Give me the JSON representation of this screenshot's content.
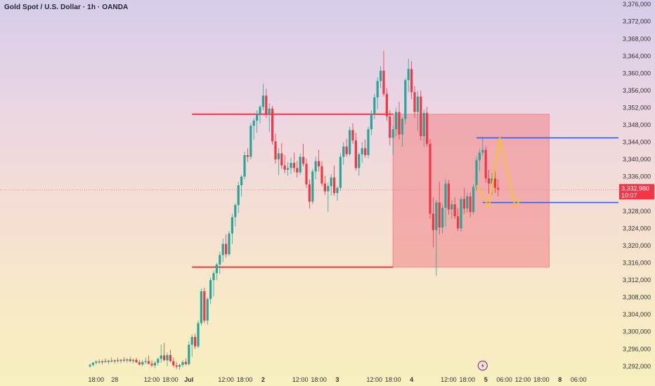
{
  "header": {
    "title": "Gold Spot / U.S. Dollar · 1h · OANDA"
  },
  "price_tag": {
    "price": "3,332,980",
    "countdown": "10:07"
  },
  "colors": {
    "up": "#26a69a",
    "down": "#f23645",
    "zone_line": "#f23645",
    "zone_fill": "#f28b8f",
    "target_line": "#2962ff",
    "projection": "#f7c325",
    "event_icon": "#9c27b0"
  },
  "icons": {
    "event": "lightning-icon"
  },
  "chart_data": {
    "type": "candlestick",
    "title": "Gold Spot / U.S. Dollar · 1h · OANDA",
    "y_ticks": [
      "3,292,000",
      "3,296,000",
      "3,300,000",
      "3,304,000",
      "3,308,000",
      "3,312,000",
      "3,316,000",
      "3,320,000",
      "3,324,000",
      "3,328,000",
      "3,332,000",
      "3,336,000",
      "3,340,000",
      "3,344,000",
      "3,348,000",
      "3,352,000",
      "3,356,000",
      "3,360,000",
      "3,364,000",
      "3,368,000",
      "3,372,000",
      "3,376,000"
    ],
    "y_tick_values": [
      3292,
      3296,
      3300,
      3304,
      3308,
      3312,
      3316,
      3320,
      3324,
      3328,
      3332,
      3336,
      3340,
      3344,
      3348,
      3352,
      3356,
      3360,
      3364,
      3368,
      3372,
      3376
    ],
    "ylim": [
      3291,
      3377
    ],
    "x_ticks": [
      {
        "i": 2,
        "label": "18:00"
      },
      {
        "i": 8,
        "label": "28"
      },
      {
        "i": 20,
        "label": "12:00"
      },
      {
        "i": 26,
        "label": "18:00"
      },
      {
        "i": 32,
        "label": "Jul"
      },
      {
        "i": 44,
        "label": "12:00"
      },
      {
        "i": 50,
        "label": "18:00"
      },
      {
        "i": 56,
        "label": "2"
      },
      {
        "i": 68,
        "label": "12:00"
      },
      {
        "i": 74,
        "label": "18:00"
      },
      {
        "i": 80,
        "label": "3"
      },
      {
        "i": 92,
        "label": "12:00"
      },
      {
        "i": 98,
        "label": "18:00"
      },
      {
        "i": 104,
        "label": "4"
      },
      {
        "i": 116,
        "label": "12:00"
      },
      {
        "i": 122,
        "label": "18:00"
      },
      {
        "i": 128,
        "label": "5"
      },
      {
        "i": 134,
        "label": "06:00"
      },
      {
        "i": 140,
        "label": "12:00"
      },
      {
        "i": 146,
        "label": "18:00"
      },
      {
        "i": 152,
        "label": "8"
      },
      {
        "i": 158,
        "label": "06:00"
      }
    ],
    "current_price": 3332.98,
    "zones": {
      "range_high": 3350.5,
      "range_low": 3315,
      "box_high": 3350.5,
      "box_low": 3315,
      "target_upper": 3345,
      "target_lower": 3330
    },
    "projection": [
      {
        "i": 125,
        "y": 3334
      },
      {
        "i": 129,
        "y": 3329
      },
      {
        "i": 132.5,
        "y": 3345
      },
      {
        "i": 137.5,
        "y": 3329
      },
      {
        "i": 139.5,
        "y": 3331
      }
    ],
    "candles": [
      [
        3292.0,
        3292.6,
        3291.6,
        3292.3
      ],
      [
        3292.3,
        3293.0,
        3292.0,
        3292.8
      ],
      [
        3292.8,
        3293.4,
        3292.4,
        3293.1
      ],
      [
        3293.1,
        3293.6,
        3292.6,
        3292.9
      ],
      [
        3292.9,
        3293.5,
        3292.4,
        3293.2
      ],
      [
        3293.2,
        3293.8,
        3292.8,
        3293.0
      ],
      [
        3293.0,
        3293.5,
        3292.5,
        3293.3
      ],
      [
        3293.3,
        3294.0,
        3292.9,
        3293.1
      ],
      [
        3293.1,
        3293.6,
        3292.6,
        3293.4
      ],
      [
        3293.4,
        3294.0,
        3292.9,
        3293.2
      ],
      [
        3293.2,
        3293.7,
        3292.7,
        3293.5
      ],
      [
        3293.5,
        3294.1,
        3293.0,
        3293.3
      ],
      [
        3293.3,
        3293.9,
        3292.8,
        3293.6
      ],
      [
        3293.6,
        3294.2,
        3293.0,
        3293.2
      ],
      [
        3293.2,
        3293.8,
        3292.6,
        3293.5
      ],
      [
        3293.5,
        3294.0,
        3292.8,
        3292.9
      ],
      [
        3292.9,
        3293.5,
        3292.2,
        3292.4
      ],
      [
        3292.4,
        3293.4,
        3292.0,
        3293.0
      ],
      [
        3293.0,
        3294.0,
        3292.5,
        3293.2
      ],
      [
        3293.2,
        3294.5,
        3292.4,
        3292.6
      ],
      [
        3292.6,
        3293.4,
        3291.8,
        3292.2
      ],
      [
        3292.2,
        3293.2,
        3291.6,
        3292.8
      ],
      [
        3292.8,
        3294.0,
        3292.2,
        3293.7
      ],
      [
        3293.7,
        3297.0,
        3292.8,
        3294.5
      ],
      [
        3294.5,
        3297.4,
        3293.2,
        3293.4
      ],
      [
        3293.4,
        3295.2,
        3292.0,
        3294.6
      ],
      [
        3294.6,
        3295.8,
        3293.0,
        3293.2
      ],
      [
        3293.2,
        3294.0,
        3291.8,
        3292.2
      ],
      [
        3292.2,
        3293.0,
        3291.4,
        3291.9
      ],
      [
        3291.9,
        3292.6,
        3291.2,
        3292.3
      ],
      [
        3292.3,
        3293.4,
        3291.8,
        3293.0
      ],
      [
        3293.0,
        3293.8,
        3292.2,
        3292.5
      ],
      [
        3292.5,
        3297.8,
        3292.2,
        3297.0
      ],
      [
        3297.0,
        3299.4,
        3294.2,
        3298.8
      ],
      [
        3298.8,
        3299.6,
        3296.0,
        3296.6
      ],
      [
        3296.6,
        3302.6,
        3296.2,
        3302.0
      ],
      [
        3302.0,
        3310.0,
        3301.4,
        3309.4
      ],
      [
        3309.4,
        3310.2,
        3302.0,
        3302.6
      ],
      [
        3302.6,
        3308.0,
        3301.6,
        3307.6
      ],
      [
        3307.6,
        3312.6,
        3306.4,
        3312.0
      ],
      [
        3312.0,
        3314.2,
        3308.2,
        3313.6
      ],
      [
        3313.6,
        3316.0,
        3312.0,
        3315.6
      ],
      [
        3315.6,
        3318.6,
        3313.4,
        3317.8
      ],
      [
        3317.8,
        3321.6,
        3316.2,
        3320.4
      ],
      [
        3320.4,
        3322.6,
        3317.2,
        3318.0
      ],
      [
        3318.0,
        3323.4,
        3317.6,
        3322.8
      ],
      [
        3322.8,
        3327.4,
        3320.4,
        3326.6
      ],
      [
        3326.6,
        3329.8,
        3324.4,
        3329.4
      ],
      [
        3329.4,
        3334.8,
        3327.6,
        3334.0
      ],
      [
        3334.0,
        3336.4,
        3331.4,
        3336.0
      ],
      [
        3336.0,
        3341.8,
        3335.4,
        3341.0
      ],
      [
        3341.0,
        3342.6,
        3339.4,
        3340.6
      ],
      [
        3340.6,
        3348.4,
        3340.0,
        3347.8
      ],
      [
        3347.8,
        3349.6,
        3344.6,
        3349.0
      ],
      [
        3349.0,
        3351.4,
        3346.2,
        3350.6
      ],
      [
        3350.6,
        3352.6,
        3348.4,
        3352.2
      ],
      [
        3352.2,
        3357.6,
        3351.4,
        3354.8
      ],
      [
        3354.8,
        3356.4,
        3349.6,
        3350.4
      ],
      [
        3350.4,
        3353.0,
        3346.4,
        3351.8
      ],
      [
        3351.8,
        3352.4,
        3343.4,
        3344.2
      ],
      [
        3344.2,
        3346.0,
        3339.0,
        3340.0
      ],
      [
        3340.0,
        3342.6,
        3336.4,
        3341.4
      ],
      [
        3341.4,
        3343.8,
        3337.8,
        3338.6
      ],
      [
        3338.6,
        3341.0,
        3336.8,
        3337.6
      ],
      [
        3337.6,
        3339.4,
        3336.2,
        3338.0
      ],
      [
        3338.0,
        3340.4,
        3336.6,
        3339.2
      ],
      [
        3339.2,
        3341.6,
        3337.0,
        3338.0
      ],
      [
        3338.0,
        3339.6,
        3335.8,
        3337.0
      ],
      [
        3337.0,
        3341.4,
        3336.4,
        3340.6
      ],
      [
        3340.6,
        3343.6,
        3338.4,
        3339.0
      ],
      [
        3339.0,
        3340.2,
        3333.4,
        3334.2
      ],
      [
        3334.2,
        3335.4,
        3328.6,
        3330.2
      ],
      [
        3330.2,
        3337.8,
        3329.6,
        3337.2
      ],
      [
        3337.2,
        3340.6,
        3335.4,
        3339.6
      ],
      [
        3339.6,
        3342.2,
        3337.2,
        3338.4
      ],
      [
        3338.4,
        3339.6,
        3333.8,
        3334.4
      ],
      [
        3334.4,
        3336.2,
        3331.8,
        3332.6
      ],
      [
        3332.6,
        3334.6,
        3327.8,
        3333.8
      ],
      [
        3333.8,
        3336.6,
        3331.6,
        3335.8
      ],
      [
        3335.8,
        3338.6,
        3331.6,
        3332.2
      ],
      [
        3332.2,
        3333.8,
        3330.4,
        3333.4
      ],
      [
        3333.4,
        3341.4,
        3332.8,
        3340.6
      ],
      [
        3340.6,
        3344.0,
        3338.8,
        3343.0
      ],
      [
        3343.0,
        3344.8,
        3340.6,
        3341.2
      ],
      [
        3341.2,
        3347.6,
        3340.8,
        3346.8
      ],
      [
        3346.8,
        3348.4,
        3343.6,
        3344.4
      ],
      [
        3344.4,
        3346.2,
        3337.4,
        3338.0
      ],
      [
        3338.0,
        3341.6,
        3336.2,
        3341.2
      ],
      [
        3341.2,
        3344.0,
        3339.2,
        3342.6
      ],
      [
        3342.6,
        3344.6,
        3340.4,
        3341.0
      ],
      [
        3341.0,
        3347.6,
        3340.2,
        3347.0
      ],
      [
        3347.0,
        3351.4,
        3345.6,
        3350.6
      ],
      [
        3350.6,
        3355.2,
        3349.4,
        3354.4
      ],
      [
        3354.4,
        3359.0,
        3351.6,
        3358.2
      ],
      [
        3358.2,
        3361.6,
        3356.6,
        3360.6
      ],
      [
        3360.6,
        3365.2,
        3354.6,
        3355.2
      ],
      [
        3355.2,
        3356.6,
        3349.0,
        3350.0
      ],
      [
        3350.0,
        3351.4,
        3343.2,
        3345.0
      ],
      [
        3345.0,
        3347.8,
        3341.0,
        3347.0
      ],
      [
        3347.0,
        3352.0,
        3345.4,
        3351.0
      ],
      [
        3351.0,
        3353.4,
        3344.6,
        3345.8
      ],
      [
        3345.8,
        3349.8,
        3343.0,
        3349.4
      ],
      [
        3349.4,
        3358.8,
        3348.2,
        3358.4
      ],
      [
        3358.4,
        3363.4,
        3355.6,
        3361.0
      ],
      [
        3361.0,
        3362.8,
        3354.0,
        3355.6
      ],
      [
        3355.6,
        3357.0,
        3349.6,
        3351.0
      ],
      [
        3351.0,
        3355.8,
        3346.6,
        3354.6
      ],
      [
        3354.6,
        3356.0,
        3344.4,
        3345.4
      ],
      [
        3345.4,
        3351.6,
        3343.0,
        3350.8
      ],
      [
        3350.8,
        3352.2,
        3343.0,
        3343.6
      ],
      [
        3343.6,
        3344.8,
        3326.2,
        3327.4
      ],
      [
        3327.4,
        3331.2,
        3319.6,
        3323.6
      ],
      [
        3323.6,
        3330.6,
        3313.0,
        3330.0
      ],
      [
        3330.0,
        3334.8,
        3322.6,
        3324.2
      ],
      [
        3324.2,
        3329.6,
        3322.8,
        3328.8
      ],
      [
        3328.8,
        3335.4,
        3324.4,
        3334.4
      ],
      [
        3334.4,
        3335.2,
        3327.2,
        3328.4
      ],
      [
        3328.4,
        3330.6,
        3326.2,
        3329.6
      ],
      [
        3329.6,
        3331.2,
        3326.2,
        3326.8
      ],
      [
        3326.8,
        3328.6,
        3323.4,
        3324.0
      ],
      [
        3324.0,
        3331.4,
        3323.2,
        3330.8
      ],
      [
        3330.8,
        3333.4,
        3327.4,
        3328.6
      ],
      [
        3328.6,
        3332.2,
        3327.6,
        3331.4
      ],
      [
        3331.4,
        3332.4,
        3326.6,
        3327.8
      ],
      [
        3327.8,
        3334.2,
        3327.2,
        3333.6
      ],
      [
        3333.6,
        3340.6,
        3332.8,
        3339.8
      ],
      [
        3339.8,
        3342.4,
        3337.2,
        3341.6
      ],
      [
        3341.6,
        3345.2,
        3340.8,
        3342.2
      ],
      [
        3342.2,
        3343.0,
        3334.6,
        3335.6
      ],
      [
        3335.6,
        3337.6,
        3332.0,
        3334.4
      ],
      [
        3334.4,
        3336.8,
        3331.8,
        3335.6
      ],
      [
        3335.6,
        3337.6,
        3332.2,
        3333.4
      ],
      [
        3333.4,
        3335.4,
        3331.4,
        3332.98
      ]
    ]
  }
}
